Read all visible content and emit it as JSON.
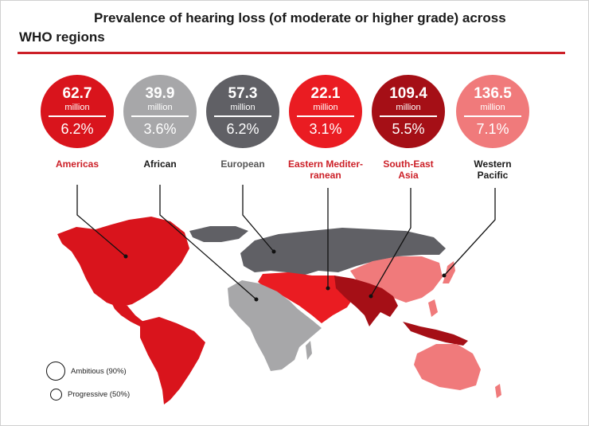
{
  "chart_data": {
    "type": "infographic-map",
    "title_line1": "Prevalence of hearing loss (of moderate or higher grade) across",
    "title_line2": "WHO regions",
    "unit": "million",
    "regions": [
      {
        "name": "Americas",
        "label_lines": [
          "Americas"
        ],
        "cases": "62.7",
        "percent": "6.2%",
        "color": "#d9141c",
        "label_color": "#cc1f27"
      },
      {
        "name": "African",
        "label_lines": [
          "African"
        ],
        "cases": "39.9",
        "percent": "3.6%",
        "color": "#a7a7a9",
        "label_color": "#1a1a1a"
      },
      {
        "name": "European",
        "label_lines": [
          "European"
        ],
        "cases": "57.3",
        "percent": "6.2%",
        "color": "#606065",
        "label_color": "#555555"
      },
      {
        "name": "Eastern Mediterranean",
        "label_lines": [
          "Eastern Mediter-",
          "ranean"
        ],
        "cases": "22.1",
        "percent": "3.1%",
        "color": "#ea1c22",
        "label_color": "#cc1f27"
      },
      {
        "name": "South-East Asia",
        "label_lines": [
          "South-East",
          "Asia"
        ],
        "cases": "109.4",
        "percent": "5.5%",
        "color": "#a50f16",
        "label_color": "#cc1f27"
      },
      {
        "name": "Western Pacific",
        "label_lines": [
          "Western",
          "Pacific"
        ],
        "cases": "136.5",
        "percent": "7.1%",
        "color": "#f07a7b",
        "label_color": "#1a1a1a"
      }
    ],
    "legend": [
      {
        "label": "Ambitious (90%)"
      },
      {
        "label": "Progressive (50%)"
      }
    ]
  },
  "colors": {
    "accent": "#cc1f27",
    "outline": "#111111"
  }
}
